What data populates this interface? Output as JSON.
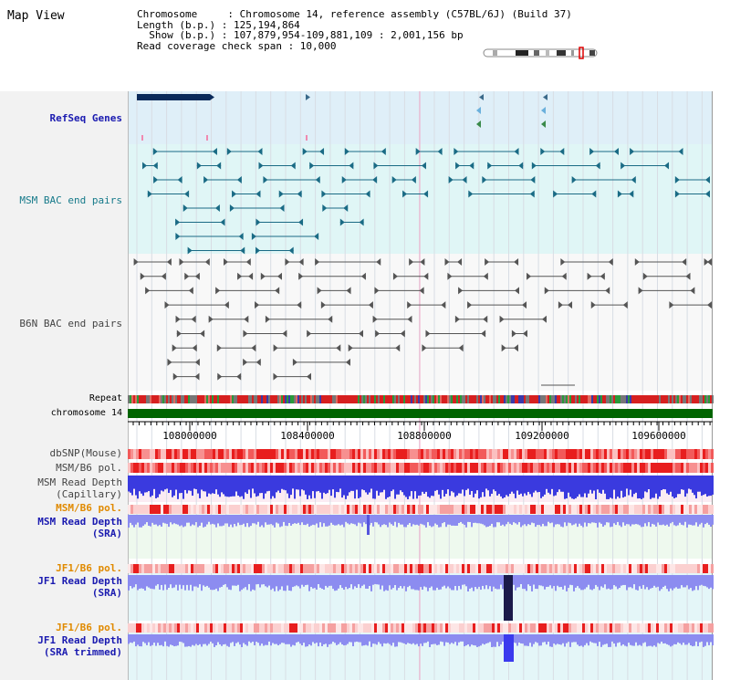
{
  "header": {
    "title": "Map View",
    "info_lines": [
      "Chromosome     : Chromosome 14, reference assembly (C57BL/6J) (Build 37)",
      "Length (b.p.) : 125,194,864",
      "  Show (b.p.) : 107,879,954-109,881,109 : 2,001,156 bp",
      "Read coverage check span : 10,000"
    ]
  },
  "tracks": {
    "refseq": "RefSeq Genes",
    "msm_bac": "MSM BAC end pairs",
    "b6n_bac": "B6N BAC end pairs",
    "repeat": "Repeat",
    "chromosome": "chromosome 14",
    "dbsnp": "dbSNP(Mouse)",
    "msm_b6_pol_1": "MSM/B6 pol.",
    "msm_read_depth_cap": [
      "MSM Read Depth",
      "(Capillary)"
    ],
    "msm_b6_pol_2": "MSM/B6 pol.",
    "msm_read_depth_sra": [
      "MSM Read Depth",
      "(SRA)"
    ],
    "jf1_b6_pol_1": "JF1/B6 pol.",
    "jf1_read_depth_sra": [
      "JF1 Read Depth",
      "(SRA)"
    ],
    "jf1_b6_pol_2": "JF1/B6 pol.",
    "jf1_read_depth_trim": [
      "JF1 Read Depth",
      "(SRA trimmed)"
    ]
  },
  "axis": {
    "ticks": [
      "108000000",
      "108400000",
      "108800000",
      "109200000",
      "109600000"
    ]
  },
  "colors": {
    "refseq_bg": "#dfeff8",
    "msm_bg": "#e0f6f6",
    "gene_dark": "#0a2a5a",
    "bac_teal": "#1a6b85",
    "bac_gray": "#555555",
    "chrom_green": "#006400",
    "depth_blue": "#3a3adf",
    "depth_light": "#8c8cf0"
  }
}
